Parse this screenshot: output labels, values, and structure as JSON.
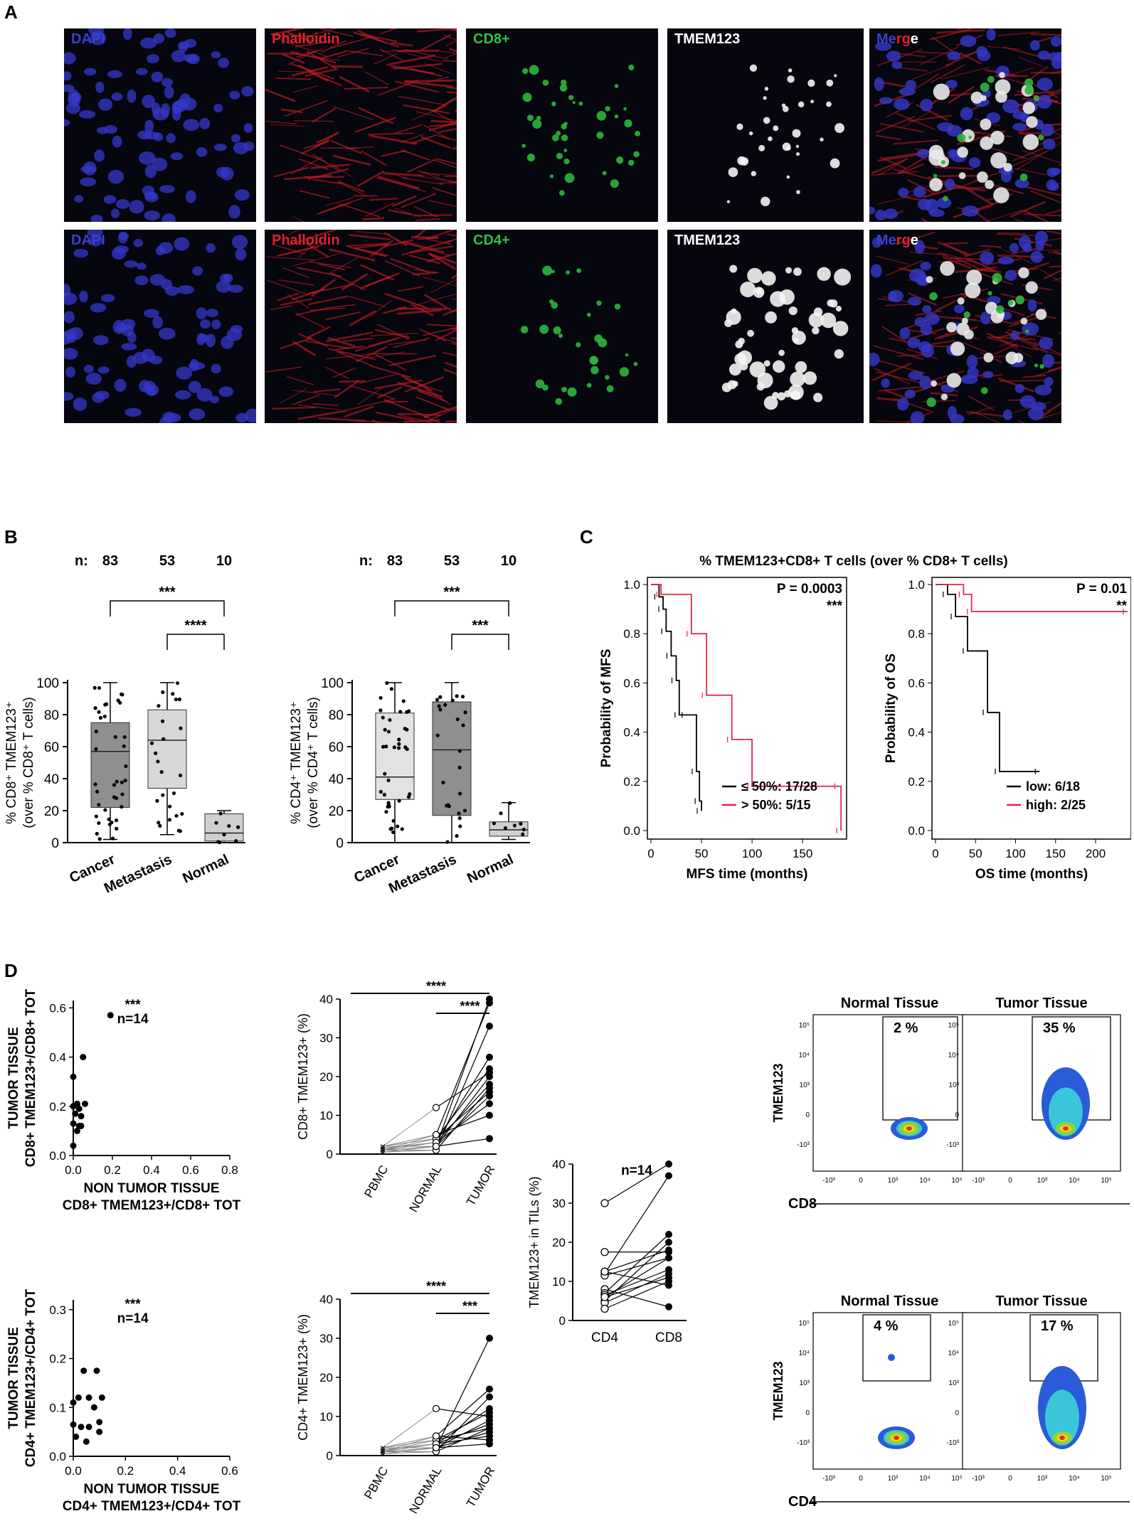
{
  "panels": {
    "a": "A",
    "b": "B",
    "c": "C",
    "d": "D"
  },
  "panel_a": {
    "row1": [
      "DAPI",
      "Phalloidin",
      "CD8+",
      "TMEM123",
      "Merge"
    ],
    "row2": [
      "DAPI",
      "Phalloidin",
      "CD4+",
      "TMEM123",
      "Merge"
    ],
    "colors": {
      "DAPI": "#3a3fd0",
      "Phalloidin": "#e0202a",
      "green": "#30c040",
      "white": "#ffffff"
    }
  },
  "panel_b": {
    "n_label": "n:",
    "n_values": [
      "83",
      "53",
      "10"
    ],
    "categories": [
      "Cancer",
      "Metastasis",
      "Normal"
    ],
    "left": {
      "ylabel1": "% CD8⁺ TMEM123⁺",
      "ylabel2": "(over % CD8⁺ T cells)",
      "sig_top": "***",
      "sig_bottom": "****"
    },
    "right": {
      "ylabel1": "% CD4⁺ TMEM123⁺",
      "ylabel2": "(over % CD4⁺ T cells)",
      "sig_top": "***",
      "sig_bottom": "***"
    },
    "yticks": [
      "0",
      "20",
      "40",
      "60",
      "80",
      "100"
    ]
  },
  "panel_c": {
    "title": "% TMEM123+CD8+ T cells (over % CD8+ T cells)",
    "mfs": {
      "p": "P = 0.0003",
      "sig": "***",
      "ylabel": "Probability of MFS",
      "xlabel": "MFS time (months)",
      "xticks": [
        "0",
        "50",
        "100",
        "150"
      ],
      "legend": [
        "≤ 50%: 17/28",
        "> 50%: 5/15"
      ]
    },
    "os": {
      "p": "P = 0.01",
      "sig": "**",
      "ylabel": "Probability of OS",
      "xlabel": "OS time (months)",
      "xticks": [
        "0",
        "50",
        "100",
        "150",
        "200"
      ],
      "legend": [
        "low: 6/18",
        "high: 2/25"
      ]
    },
    "yticks": [
      "0.0",
      "0.2",
      "0.4",
      "0.6",
      "0.8",
      "1.0"
    ]
  },
  "panel_d": {
    "scatter_top": {
      "ylabel1": "TUMOR TISSUE",
      "ylabel2": "CD8+ TMEM123+/CD8+ TOT",
      "xlabel1": "NON TUMOR TISSUE",
      "xlabel2": "CD8+ TMEM123+/CD8+ TOT",
      "sig": "***",
      "n": "n=14",
      "yticks": [
        "0.0",
        "0.2",
        "0.4",
        "0.6"
      ],
      "xticks": [
        "0.0",
        "0.2",
        "0.4",
        "0.6",
        "0.8"
      ]
    },
    "scatter_bottom": {
      "ylabel1": "TUMOR TISSUE",
      "ylabel2": "CD4+ TMEM123+/CD4+ TOT",
      "xlabel1": "NON TUMOR TISSUE",
      "xlabel2": "CD4+ TMEM123+/CD4+ TOT",
      "sig": "***",
      "n": "n=14",
      "yticks": [
        "0.0",
        "0.1",
        "0.2",
        "0.3"
      ],
      "xticks": [
        "0.0",
        "0.2",
        "0.4",
        "0.6"
      ]
    },
    "paired_top": {
      "ylabel": "CD8+ TMEM123+ (%)",
      "cats": [
        "PBMC",
        "NORMAL",
        "TUMOR"
      ],
      "yticks": [
        "0",
        "10",
        "20",
        "30",
        "40"
      ],
      "sig1": "****",
      "sig2": "****"
    },
    "paired_bottom": {
      "ylabel": "CD4+ TMEM123+ (%)",
      "cats": [
        "PBMC",
        "NORMAL",
        "TUMOR"
      ],
      "yticks": [
        "0",
        "10",
        "20",
        "30",
        "40"
      ],
      "sig1": "****",
      "sig2": "***"
    },
    "tils": {
      "ylabel": "TMEM123+ in TILs (%)",
      "cats": [
        "CD4",
        "CD8"
      ],
      "yticks": [
        "0",
        "10",
        "20",
        "30",
        "40"
      ],
      "n": "n=14"
    },
    "flow": {
      "cols": [
        "Normal Tissue",
        "Tumor Tissue"
      ],
      "top_pcts": [
        "2 %",
        "35 %"
      ],
      "bottom_pcts": [
        "4 %",
        "17 %"
      ],
      "ylabel": "TMEM123",
      "xlabel_top": "CD8",
      "xlabel_bottom": "CD4"
    }
  },
  "chart_data": [
    {
      "type": "box",
      "name": "CD8 TMEM123 boxplot",
      "categories": [
        "Cancer",
        "Metastasis",
        "Normal"
      ],
      "median": [
        57,
        64,
        6
      ],
      "q1": [
        22,
        34,
        1
      ],
      "q3": [
        75,
        83,
        18
      ],
      "min": [
        2,
        5,
        0
      ],
      "max": [
        100,
        100,
        20
      ],
      "ylim": [
        0,
        100
      ]
    },
    {
      "type": "box",
      "name": "CD4 TMEM123 boxplot",
      "categories": [
        "Cancer",
        "Metastasis",
        "Normal"
      ],
      "median": [
        41,
        58,
        8
      ],
      "q1": [
        27,
        17,
        4
      ],
      "q3": [
        81,
        88,
        13
      ],
      "min": [
        0,
        0,
        2
      ],
      "max": [
        100,
        100,
        25
      ],
      "ylim": [
        0,
        100
      ]
    },
    {
      "type": "line",
      "name": "MFS Kaplan-Meier",
      "series": [
        {
          "name": "≤ 50%: 17/28",
          "x": [
            0,
            8,
            12,
            15,
            20,
            25,
            28,
            35,
            45,
            48,
            50
          ],
          "y": [
            1.0,
            0.95,
            0.9,
            0.81,
            0.71,
            0.61,
            0.47,
            0.47,
            0.24,
            0.12,
            0.08
          ]
        },
        {
          "name": "> 50%: 5/15",
          "x": [
            0,
            10,
            40,
            55,
            80,
            100,
            186,
            188
          ],
          "y": [
            1.0,
            0.96,
            0.8,
            0.55,
            0.37,
            0.18,
            0.18,
            0.0
          ]
        }
      ],
      "xlim": [
        0,
        190
      ],
      "ylim": [
        0,
        1
      ]
    },
    {
      "type": "line",
      "name": "OS Kaplan-Meier",
      "series": [
        {
          "name": "low: 6/18",
          "x": [
            0,
            15,
            25,
            40,
            65,
            80,
            130
          ],
          "y": [
            1.0,
            0.96,
            0.87,
            0.73,
            0.48,
            0.24,
            0.24
          ]
        },
        {
          "name": "high: 2/25",
          "x": [
            0,
            35,
            45,
            240
          ],
          "y": [
            1.0,
            0.96,
            0.89,
            0.89
          ]
        }
      ],
      "xlim": [
        0,
        240
      ],
      "ylim": [
        0,
        1
      ]
    }
  ]
}
